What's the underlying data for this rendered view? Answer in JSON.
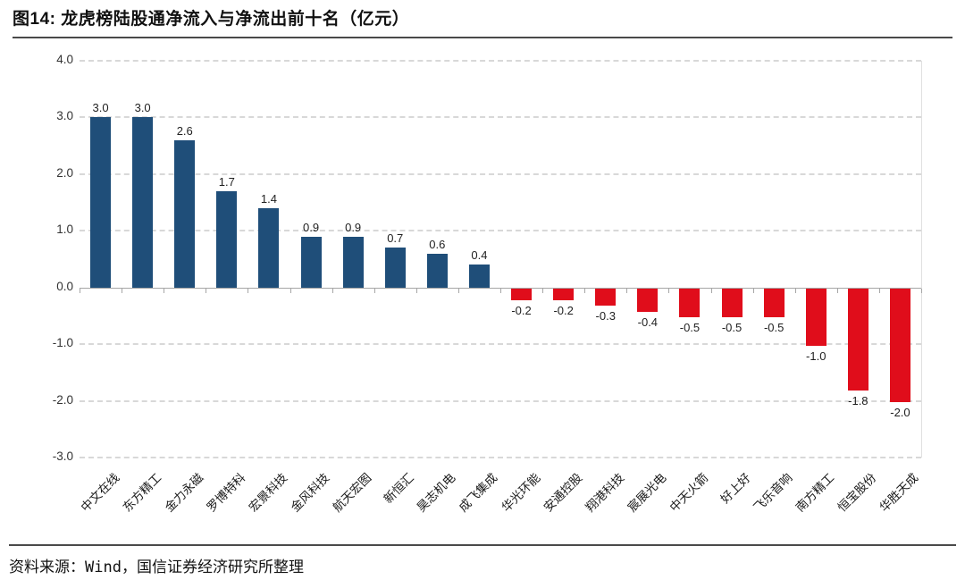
{
  "header": {
    "title": "图14: 龙虎榜陆股通净流入与净流出前十名（亿元）"
  },
  "footer": {
    "source": "资料来源：Wind，国信证券经济研究所整理"
  },
  "chart_data": {
    "type": "bar",
    "title": "龙虎榜陆股通净流入与净流出前十名（亿元）",
    "unit": "亿元",
    "categories": [
      "中文在线",
      "东方精工",
      "金力永磁",
      "罗博特科",
      "宏景科技",
      "金风科技",
      "航天宏图",
      "新恒汇",
      "昊志机电",
      "成飞集成",
      "华光环能",
      "安通控股",
      "翔港科技",
      "宸展光电",
      "中天火箭",
      "好上好",
      "飞乐音响",
      "南方精工",
      "恒宝股份",
      "华胜天成"
    ],
    "values": [
      3.0,
      3.0,
      2.6,
      1.7,
      1.4,
      0.9,
      0.9,
      0.7,
      0.6,
      0.4,
      -0.2,
      -0.2,
      -0.3,
      -0.4,
      -0.5,
      -0.5,
      -0.5,
      -1.0,
      -1.8,
      -2.0
    ],
    "value_labels": [
      "3.0",
      "3.0",
      "2.6",
      "1.7",
      "1.4",
      "0.9",
      "0.9",
      "0.7",
      "0.6",
      "0.4",
      "-0.2",
      "-0.2",
      "-0.3",
      "-0.4",
      "-0.5",
      "-0.5",
      "-0.5",
      "-1.0",
      "-1.8",
      "-2.0"
    ],
    "ytick_labels": [
      "4.0",
      "3.0",
      "2.0",
      "1.0",
      "0.0",
      "-1.0",
      "-2.0",
      "-3.0"
    ],
    "ylim": [
      -3.0,
      4.0
    ],
    "xlabel": "",
    "ylabel": "",
    "grid": "horizontal dashed",
    "legend": "none",
    "colors": {
      "positive_bar": "#1F4E79",
      "negative_bar": "#E00D1B",
      "gridline": "#D8D8D8",
      "axis": "#A6A6A6"
    }
  }
}
